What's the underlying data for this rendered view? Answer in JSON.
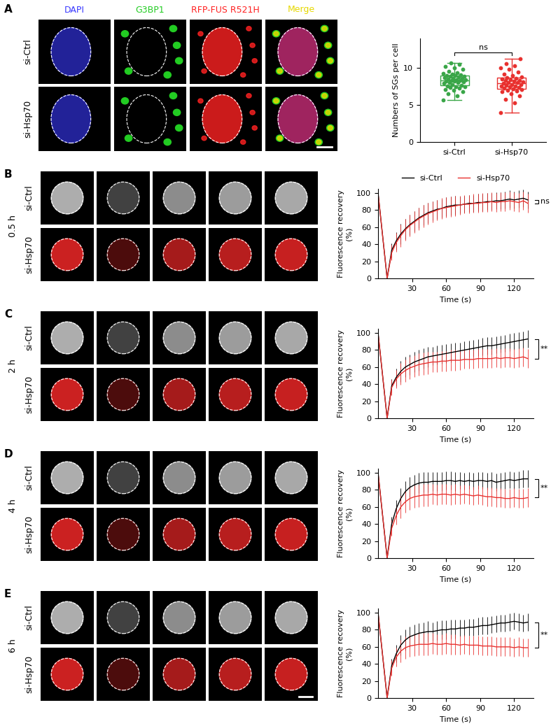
{
  "chart_data": [
    {
      "type": "box",
      "categories": [
        "si-Ctrl",
        "si-Hsp70"
      ],
      "values": [
        [
          5.7,
          6.2,
          6.5,
          6.8,
          7.0,
          7.1,
          7.3,
          7.4,
          7.5,
          7.5,
          7.6,
          7.7,
          7.8,
          7.9,
          8.0,
          8.0,
          8.1,
          8.2,
          8.2,
          8.3,
          8.3,
          8.4,
          8.4,
          8.5,
          8.6,
          8.6,
          8.7,
          8.8,
          8.9,
          8.9,
          9.0,
          9.0,
          9.1,
          9.2,
          9.3,
          9.4,
          9.6,
          9.8,
          10.0,
          10.2,
          10.5,
          10.7
        ],
        [
          4.0,
          5.3,
          5.8,
          6.2,
          6.5,
          6.8,
          6.9,
          7.0,
          7.1,
          7.2,
          7.3,
          7.4,
          7.5,
          7.6,
          7.6,
          7.7,
          7.8,
          7.8,
          7.9,
          8.0,
          8.0,
          8.1,
          8.2,
          8.3,
          8.3,
          8.4,
          8.5,
          8.6,
          8.7,
          8.8,
          9.0,
          9.2,
          9.5,
          9.8,
          10.0,
          10.3,
          10.6,
          11.3
        ]
      ],
      "colors": [
        "#3aa648",
        "#e8312f"
      ],
      "ylabel": "Numbers of SGs per cell",
      "ylim": [
        0,
        14
      ],
      "yticks": [
        0,
        5,
        10
      ],
      "annotations": [
        "ns"
      ]
    },
    {
      "type": "line",
      "x": [
        0,
        8,
        12,
        16,
        20,
        24,
        28,
        32,
        36,
        40,
        44,
        48,
        52,
        56,
        60,
        64,
        68,
        72,
        76,
        80,
        84,
        88,
        92,
        96,
        100,
        104,
        108,
        112,
        116,
        120,
        124,
        128,
        132
      ],
      "series": [
        {
          "name": "si-Ctrl",
          "color": "#000000",
          "values": [
            100,
            0,
            33,
            44,
            52,
            58,
            63,
            67,
            71,
            74,
            77,
            79,
            81,
            82,
            84,
            85,
            86,
            86,
            87,
            88,
            88,
            89,
            89,
            90,
            90,
            91,
            91,
            92,
            93,
            92,
            93,
            94,
            92
          ],
          "errors": [
            0,
            0,
            8,
            10,
            12,
            12,
            12,
            12,
            12,
            12,
            12,
            11,
            11,
            11,
            11,
            11,
            11,
            10,
            10,
            10,
            10,
            10,
            10,
            10,
            10,
            10,
            10,
            10,
            10,
            10,
            10,
            10,
            10
          ]
        },
        {
          "name": "si-Hsp70",
          "color": "#e8312f",
          "values": [
            100,
            0,
            30,
            42,
            50,
            57,
            62,
            66,
            70,
            73,
            76,
            78,
            80,
            82,
            83,
            84,
            85,
            86,
            87,
            87,
            88,
            88,
            89,
            89,
            90,
            89,
            90,
            90,
            91,
            90,
            89,
            91,
            88
          ],
          "errors": [
            0,
            0,
            9,
            11,
            13,
            13,
            13,
            13,
            13,
            13,
            13,
            12,
            12,
            12,
            12,
            12,
            12,
            11,
            11,
            11,
            11,
            11,
            11,
            11,
            11,
            11,
            11,
            11,
            11,
            11,
            11,
            11,
            11
          ]
        }
      ],
      "xlabel": "Time (s)",
      "ylabel": "Fluorescence recovery\n(%)",
      "xlim": [
        0,
        137
      ],
      "xticks": [
        30,
        60,
        90,
        120
      ],
      "ylim": [
        0,
        105
      ],
      "yticks": [
        0,
        20,
        40,
        60,
        80,
        100
      ],
      "annotations": [
        "ns"
      ],
      "legend": "lower center"
    },
    {
      "type": "line",
      "x": [
        0,
        8,
        12,
        16,
        20,
        24,
        28,
        32,
        36,
        40,
        44,
        48,
        52,
        56,
        60,
        64,
        68,
        72,
        76,
        80,
        84,
        88,
        92,
        96,
        100,
        104,
        108,
        112,
        116,
        120,
        124,
        128,
        132
      ],
      "series": [
        {
          "name": "si-Ctrl",
          "color": "#000000",
          "values": [
            100,
            0,
            38,
            48,
            55,
            60,
            63,
            66,
            68,
            70,
            72,
            73,
            74,
            75,
            76,
            77,
            78,
            79,
            80,
            81,
            82,
            83,
            84,
            85,
            85,
            86,
            87,
            88,
            89,
            90,
            91,
            92,
            93
          ],
          "errors": [
            0,
            0,
            8,
            10,
            12,
            12,
            12,
            12,
            12,
            12,
            12,
            11,
            11,
            11,
            11,
            11,
            11,
            10,
            10,
            10,
            10,
            10,
            10,
            10,
            10,
            10,
            10,
            10,
            10,
            10,
            10,
            10,
            10
          ]
        },
        {
          "name": "si-Hsp70",
          "color": "#e8312f",
          "values": [
            100,
            0,
            36,
            46,
            52,
            56,
            59,
            61,
            63,
            64,
            65,
            66,
            66,
            67,
            67,
            68,
            68,
            68,
            69,
            69,
            69,
            70,
            70,
            70,
            70,
            71,
            70,
            71,
            71,
            70,
            71,
            72,
            70
          ],
          "errors": [
            0,
            0,
            9,
            11,
            13,
            13,
            13,
            13,
            13,
            13,
            13,
            12,
            12,
            12,
            12,
            12,
            12,
            11,
            11,
            11,
            11,
            11,
            11,
            11,
            11,
            11,
            11,
            11,
            11,
            11,
            11,
            11,
            11
          ]
        }
      ],
      "xlabel": "Time (s)",
      "ylabel": "Fluorescence recovery\n(%)",
      "xlim": [
        0,
        137
      ],
      "xticks": [
        30,
        60,
        90,
        120
      ],
      "ylim": [
        0,
        105
      ],
      "yticks": [
        0,
        20,
        40,
        60,
        80,
        100
      ],
      "annotations": [
        "**"
      ]
    },
    {
      "type": "line",
      "x": [
        0,
        8,
        12,
        16,
        20,
        24,
        28,
        32,
        36,
        40,
        44,
        48,
        52,
        56,
        60,
        64,
        68,
        72,
        76,
        80,
        84,
        88,
        92,
        96,
        100,
        104,
        108,
        112,
        116,
        120,
        124,
        128,
        132
      ],
      "series": [
        {
          "name": "si-Ctrl",
          "color": "#000000",
          "values": [
            100,
            0,
            40,
            58,
            70,
            78,
            83,
            86,
            88,
            89,
            89,
            90,
            90,
            90,
            91,
            91,
            90,
            91,
            90,
            91,
            90,
            91,
            91,
            90,
            91,
            89,
            90,
            91,
            92,
            91,
            92,
            93,
            93
          ],
          "errors": [
            0,
            0,
            8,
            10,
            12,
            12,
            12,
            12,
            12,
            12,
            12,
            11,
            11,
            11,
            11,
            11,
            11,
            10,
            10,
            10,
            10,
            10,
            10,
            10,
            10,
            10,
            10,
            10,
            10,
            10,
            10,
            10,
            10
          ]
        },
        {
          "name": "si-Hsp70",
          "color": "#e8312f",
          "values": [
            100,
            0,
            35,
            50,
            60,
            66,
            70,
            72,
            73,
            74,
            74,
            75,
            74,
            75,
            75,
            74,
            75,
            74,
            75,
            74,
            73,
            74,
            73,
            72,
            72,
            71,
            71,
            70,
            70,
            71,
            70,
            70,
            71
          ],
          "errors": [
            0,
            0,
            9,
            11,
            13,
            13,
            13,
            13,
            13,
            13,
            13,
            12,
            12,
            12,
            12,
            12,
            12,
            11,
            11,
            11,
            11,
            11,
            11,
            11,
            11,
            11,
            11,
            11,
            11,
            11,
            11,
            11,
            11
          ]
        }
      ],
      "xlabel": "Time (s)",
      "ylabel": "Fluorescence recovery\n(%)",
      "xlim": [
        0,
        137
      ],
      "xticks": [
        30,
        60,
        90,
        120
      ],
      "ylim": [
        0,
        105
      ],
      "yticks": [
        0,
        20,
        40,
        60,
        80,
        100
      ],
      "annotations": [
        "**"
      ]
    },
    {
      "type": "line",
      "x": [
        0,
        8,
        12,
        16,
        20,
        24,
        28,
        32,
        36,
        40,
        44,
        48,
        52,
        56,
        60,
        64,
        68,
        72,
        76,
        80,
        84,
        88,
        92,
        96,
        100,
        104,
        108,
        112,
        116,
        120,
        124,
        128,
        132
      ],
      "series": [
        {
          "name": "si-Ctrl",
          "color": "#000000",
          "values": [
            100,
            0,
            38,
            52,
            62,
            68,
            72,
            74,
            76,
            77,
            78,
            78,
            79,
            80,
            80,
            81,
            81,
            82,
            82,
            83,
            83,
            84,
            85,
            85,
            86,
            87,
            88,
            88,
            89,
            90,
            89,
            88,
            89
          ],
          "errors": [
            0,
            0,
            8,
            10,
            12,
            12,
            12,
            12,
            12,
            12,
            12,
            11,
            11,
            11,
            11,
            11,
            11,
            10,
            10,
            10,
            10,
            10,
            10,
            10,
            10,
            10,
            10,
            10,
            10,
            10,
            10,
            10,
            10
          ]
        },
        {
          "name": "si-Hsp70",
          "color": "#e8312f",
          "values": [
            100,
            0,
            35,
            48,
            55,
            59,
            61,
            62,
            63,
            63,
            63,
            64,
            63,
            63,
            64,
            63,
            63,
            62,
            63,
            62,
            62,
            62,
            61,
            61,
            61,
            60,
            60,
            60,
            60,
            59,
            60,
            59,
            59
          ],
          "errors": [
            0,
            0,
            9,
            11,
            13,
            13,
            13,
            13,
            13,
            13,
            13,
            12,
            12,
            12,
            12,
            12,
            12,
            11,
            11,
            11,
            11,
            11,
            11,
            11,
            11,
            11,
            11,
            11,
            11,
            11,
            11,
            11,
            11
          ]
        }
      ],
      "xlabel": "Time (s)",
      "ylabel": "Fluorescence recovery\n(%)",
      "xlim": [
        0,
        137
      ],
      "xticks": [
        30,
        60,
        90,
        120
      ],
      "ylim": [
        0,
        105
      ],
      "yticks": [
        0,
        20,
        40,
        60,
        80,
        100
      ],
      "annotations": [
        "**"
      ]
    }
  ],
  "panel_labels": [
    "A",
    "B",
    "C",
    "D",
    "E"
  ],
  "micrographs": {
    "A": {
      "channels": [
        {
          "label": "DAPI",
          "color": "#3a3aff"
        },
        {
          "label": "G3BP1",
          "color": "#22cc22"
        },
        {
          "label": "RFP-FUS R521H",
          "color": "#ff2222"
        },
        {
          "label": "Merge",
          "color": "#e6d800"
        }
      ],
      "rows": [
        "si-Ctrl",
        "si-Hsp70"
      ]
    },
    "frap": {
      "rows": [
        "si-Ctrl",
        "si-Hsp70"
      ],
      "row_colors": [
        "#d9d9d9",
        "#ff2a2a"
      ],
      "times": [
        "0.5 h",
        "2 h",
        "4 h",
        "6 h"
      ]
    }
  }
}
